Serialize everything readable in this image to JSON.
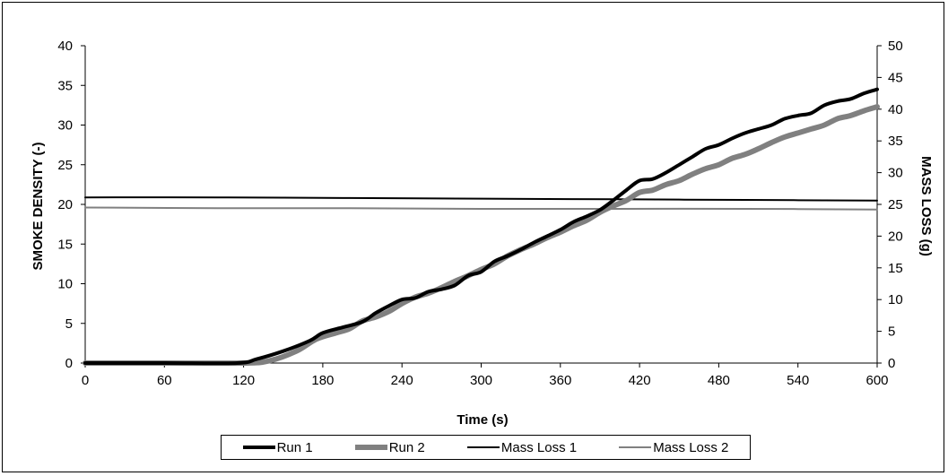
{
  "chart_data": {
    "type": "line",
    "xlabel": "Time (s)",
    "ylabel": "SMOKE DENSITY (-)",
    "y2label": "MASS LOSS (g)",
    "xlim": [
      0,
      600
    ],
    "ylim": [
      0,
      40
    ],
    "y2lim": [
      0,
      50
    ],
    "xticks": [
      0,
      60,
      120,
      180,
      240,
      300,
      360,
      420,
      480,
      540,
      600
    ],
    "yticks": [
      0,
      5,
      10,
      15,
      20,
      25,
      30,
      35,
      40
    ],
    "y2ticks": [
      0,
      5,
      10,
      15,
      20,
      25,
      30,
      35,
      40,
      45,
      50
    ],
    "grid": false,
    "legend_position": "bottom",
    "series": [
      {
        "name": "Run 1",
        "axis": "left",
        "color": "#000000",
        "style": "thick",
        "x": [
          0,
          60,
          115,
          130,
          150,
          170,
          180,
          195,
          210,
          220,
          230,
          240,
          250,
          260,
          270,
          280,
          290,
          300,
          310,
          320,
          330,
          340,
          350,
          360,
          370,
          380,
          390,
          400,
          410,
          420,
          430,
          440,
          450,
          460,
          470,
          480,
          490,
          500,
          510,
          520,
          530,
          540,
          550,
          560,
          570,
          580,
          590,
          600
        ],
        "y": [
          0,
          0,
          0,
          0.5,
          1.5,
          2.8,
          3.8,
          4.5,
          5.2,
          6.3,
          7.2,
          8.0,
          8.2,
          9.0,
          9.3,
          9.8,
          11.0,
          11.5,
          12.8,
          13.5,
          14.3,
          15.2,
          16.0,
          16.8,
          17.8,
          18.5,
          19.3,
          20.5,
          21.8,
          23.0,
          23.2,
          24.0,
          25.0,
          26.0,
          27.0,
          27.5,
          28.3,
          29.0,
          29.5,
          30.0,
          30.8,
          31.2,
          31.5,
          32.5,
          33.0,
          33.3,
          34.0,
          34.5
        ]
      },
      {
        "name": "Run 2",
        "axis": "left",
        "color": "#808080",
        "style": "thick",
        "x": [
          0,
          60,
          120,
          140,
          160,
          175,
          190,
          200,
          210,
          220,
          230,
          240,
          250,
          260,
          270,
          280,
          290,
          300,
          310,
          320,
          330,
          340,
          350,
          360,
          370,
          380,
          390,
          400,
          410,
          420,
          430,
          440,
          450,
          460,
          470,
          480,
          490,
          500,
          510,
          520,
          530,
          540,
          550,
          560,
          570,
          580,
          590,
          600
        ],
        "y": [
          0,
          0,
          0,
          0.3,
          1.5,
          3.0,
          3.8,
          4.3,
          5.3,
          5.8,
          6.5,
          7.5,
          8.3,
          8.8,
          9.5,
          10.3,
          11.0,
          11.8,
          12.5,
          13.5,
          14.3,
          15.0,
          15.8,
          16.5,
          17.3,
          18.0,
          19.0,
          19.8,
          20.5,
          21.5,
          21.8,
          22.5,
          23.0,
          23.8,
          24.5,
          25.0,
          25.8,
          26.3,
          27.0,
          27.8,
          28.5,
          29.0,
          29.5,
          30.0,
          30.8,
          31.2,
          31.8,
          32.3
        ]
      },
      {
        "name": "Mass Loss 1",
        "axis": "right",
        "color": "#000000",
        "style": "thin",
        "x": [
          0,
          100,
          200,
          300,
          400,
          500,
          600
        ],
        "y": [
          26.1,
          26.1,
          26.0,
          25.9,
          25.8,
          25.7,
          25.6
        ]
      },
      {
        "name": "Mass Loss 2",
        "axis": "right",
        "color": "#808080",
        "style": "thin",
        "x": [
          0,
          100,
          200,
          300,
          400,
          500,
          600
        ],
        "y": [
          24.5,
          24.4,
          24.4,
          24.3,
          24.3,
          24.3,
          24.2
        ]
      }
    ]
  }
}
